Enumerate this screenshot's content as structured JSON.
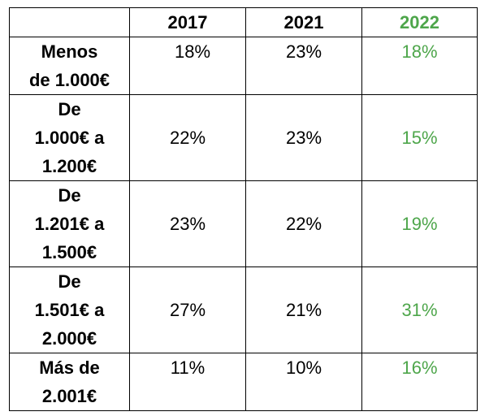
{
  "table": {
    "headers": [
      "",
      "2017",
      "2021",
      "2022"
    ],
    "accent_color": "#4ea64b",
    "rows": [
      {
        "label": "Menos\nde 1.000€",
        "v2017": "18%",
        "v2021": "23%",
        "v2022": "18%"
      },
      {
        "label": "De\n1.000€ a\n1.200€",
        "v2017": "22%",
        "v2021": "23%",
        "v2022": "15%"
      },
      {
        "label": "De\n1.201€ a\n1.500€",
        "v2017": "23%",
        "v2021": "22%",
        "v2022": "19%"
      },
      {
        "label": "De\n1.501€ a\n2.000€",
        "v2017": "27%",
        "v2021": "21%",
        "v2022": "31%"
      },
      {
        "label": "Más de\n2.001€",
        "v2017": "11%",
        "v2021": "10%",
        "v2022": "16%"
      }
    ]
  }
}
